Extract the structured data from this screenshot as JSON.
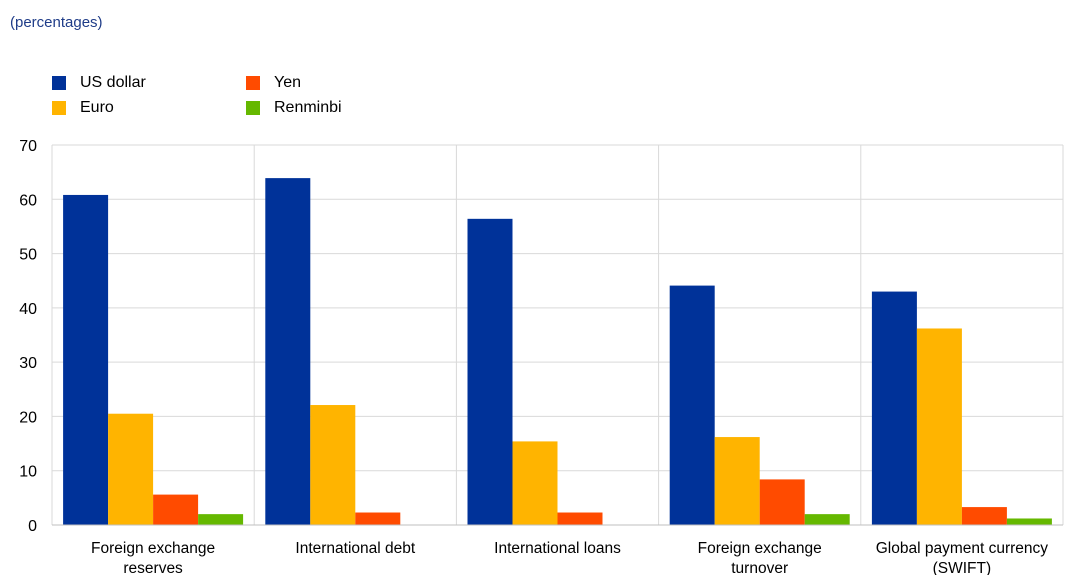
{
  "subtitle": "(percentages)",
  "chart_data": {
    "type": "bar",
    "title": "",
    "subtitle": "(percentages)",
    "xlabel": "",
    "ylabel": "",
    "ylim": [
      0,
      70
    ],
    "yticks": [
      "0",
      "10",
      "20",
      "30",
      "40",
      "50",
      "60",
      "70"
    ],
    "grid": true,
    "legend_position": "top-left",
    "categories": [
      [
        "Foreign exchange",
        "reserves"
      ],
      [
        "International debt"
      ],
      [
        "International loans"
      ],
      [
        "Foreign exchange",
        "turnover"
      ],
      [
        "Global payment currency",
        "(SWIFT)"
      ]
    ],
    "series": [
      {
        "name": "US dollar",
        "color": "#003299",
        "values": [
          60.8,
          63.9,
          56.4,
          44.1,
          43.0
        ]
      },
      {
        "name": "Euro",
        "color": "#ffb400",
        "values": [
          20.5,
          22.1,
          15.4,
          16.2,
          36.2
        ]
      },
      {
        "name": "Yen",
        "color": "#ff4b00",
        "values": [
          5.6,
          2.3,
          2.3,
          8.4,
          3.3
        ]
      },
      {
        "name": "Renminbi",
        "color": "#65b800",
        "values": [
          2.0,
          null,
          null,
          2.0,
          1.2
        ]
      }
    ]
  }
}
